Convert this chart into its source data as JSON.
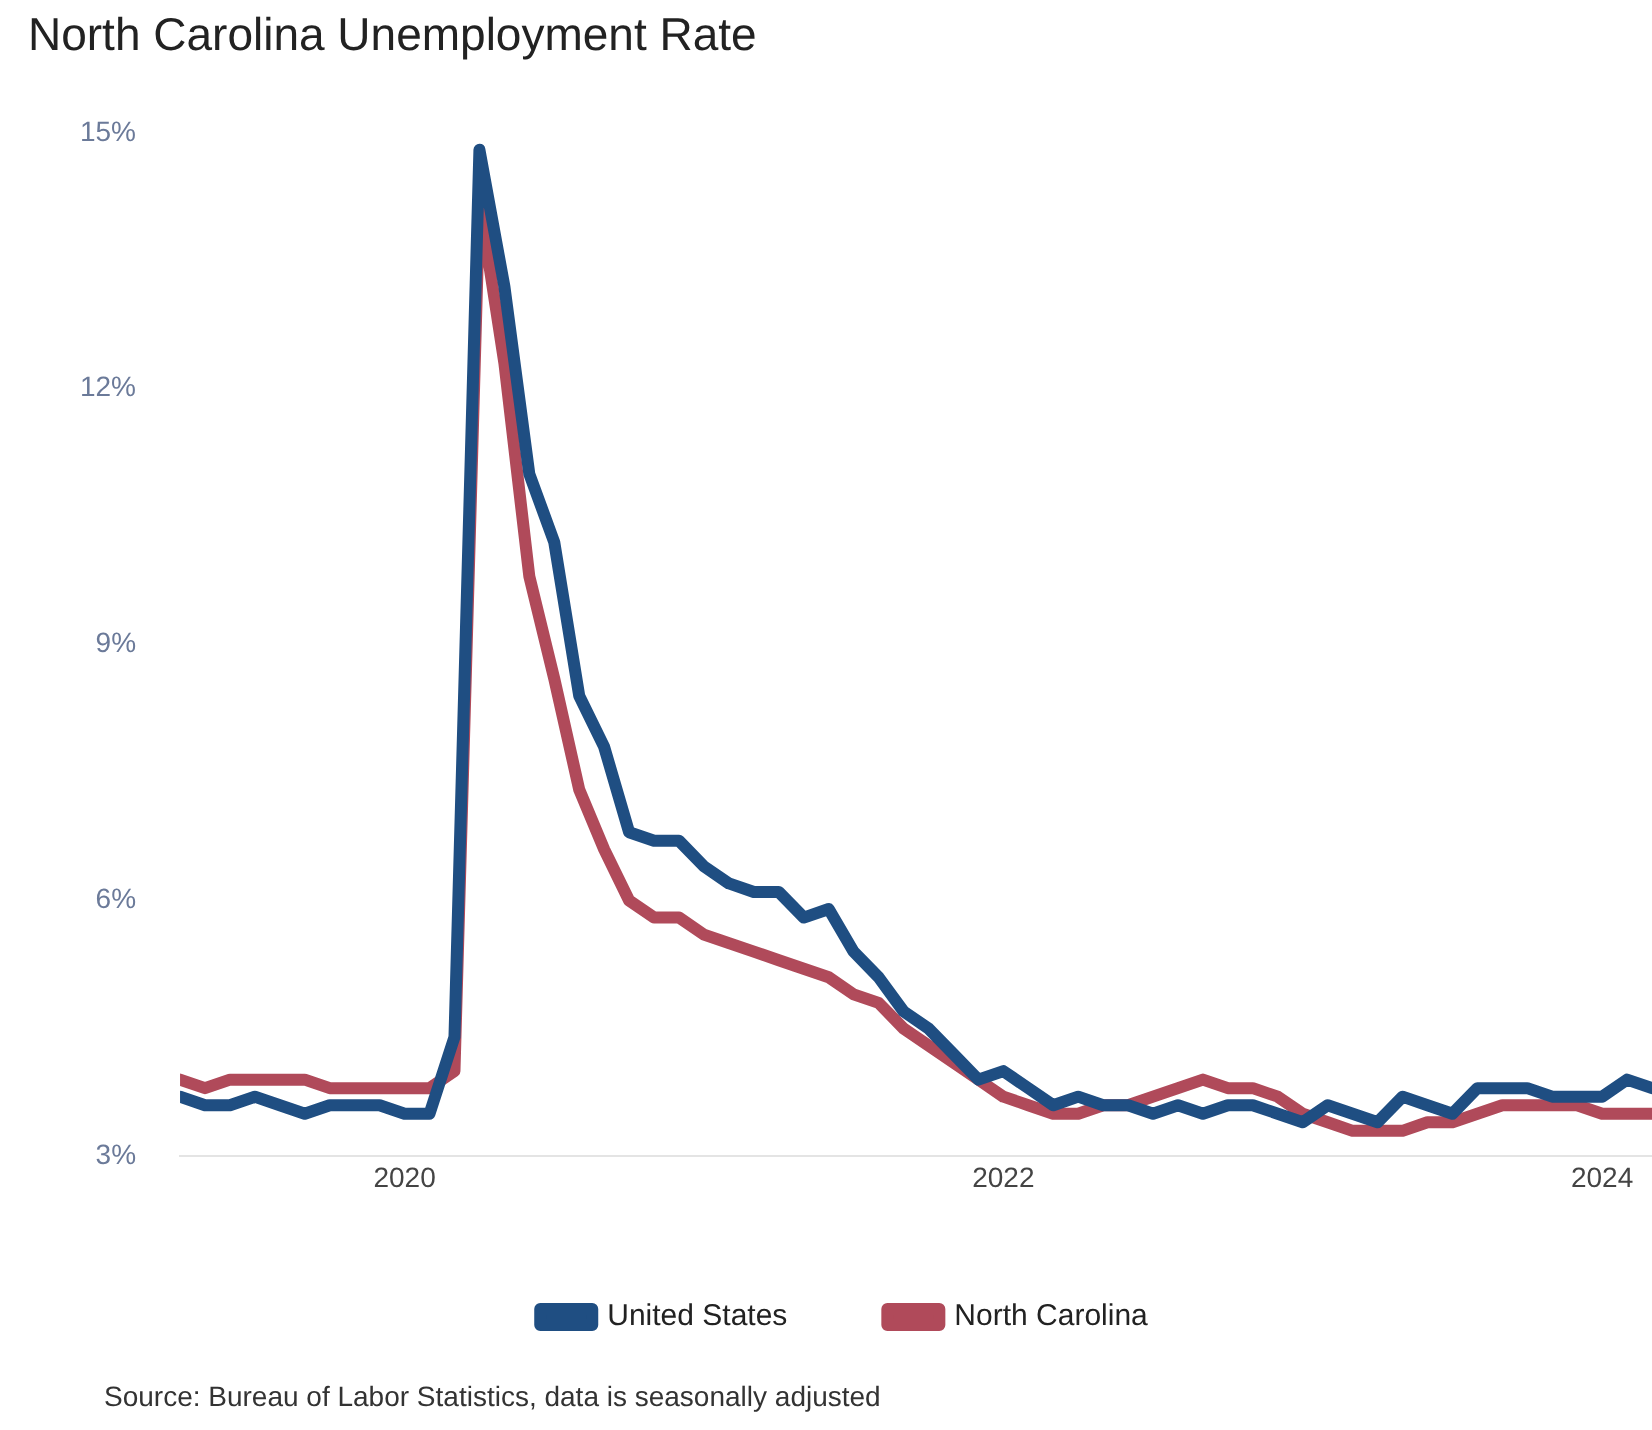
{
  "chart_data": {
    "type": "line",
    "title": "North Carolina Unemployment Rate",
    "x": [
      "2019-04",
      "2019-05",
      "2019-06",
      "2019-07",
      "2019-08",
      "2019-09",
      "2019-10",
      "2019-11",
      "2019-12",
      "2020-01",
      "2020-02",
      "2020-03",
      "2020-04",
      "2020-05",
      "2020-06",
      "2020-07",
      "2020-08",
      "2020-09",
      "2020-10",
      "2020-11",
      "2020-12",
      "2021-01",
      "2021-02",
      "2021-03",
      "2021-04",
      "2021-05",
      "2021-06",
      "2021-07",
      "2021-08",
      "2021-09",
      "2021-10",
      "2021-11",
      "2021-12",
      "2022-01",
      "2022-02",
      "2022-03",
      "2022-04",
      "2022-05",
      "2022-06",
      "2022-07",
      "2022-08",
      "2022-09",
      "2022-10",
      "2022-11",
      "2022-12",
      "2023-01",
      "2023-02",
      "2023-03",
      "2023-04",
      "2023-05",
      "2023-06",
      "2023-07",
      "2023-08",
      "2023-09",
      "2023-10",
      "2023-11",
      "2023-12",
      "2024-01",
      "2024-02",
      "2024-03"
    ],
    "series": [
      {
        "name": "United States",
        "color": "#1f4e82",
        "values": [
          3.7,
          3.6,
          3.6,
          3.7,
          3.6,
          3.5,
          3.6,
          3.6,
          3.6,
          3.5,
          3.5,
          4.4,
          14.8,
          13.2,
          11.0,
          10.2,
          8.4,
          7.8,
          6.8,
          6.7,
          6.7,
          6.4,
          6.2,
          6.1,
          6.1,
          5.8,
          5.9,
          5.4,
          5.1,
          4.7,
          4.5,
          4.2,
          3.9,
          4.0,
          3.8,
          3.6,
          3.7,
          3.6,
          3.6,
          3.5,
          3.6,
          3.5,
          3.6,
          3.6,
          3.5,
          3.4,
          3.6,
          3.5,
          3.4,
          3.7,
          3.6,
          3.5,
          3.8,
          3.8,
          3.8,
          3.7,
          3.7,
          3.7,
          3.9,
          3.8
        ]
      },
      {
        "name": "North Carolina",
        "color": "#b04a5a",
        "values": [
          3.9,
          3.8,
          3.9,
          3.9,
          3.9,
          3.9,
          3.8,
          3.8,
          3.8,
          3.8,
          3.8,
          4.0,
          14.2,
          12.3,
          9.8,
          8.6,
          7.3,
          6.6,
          6.0,
          5.8,
          5.8,
          5.6,
          5.5,
          5.4,
          5.3,
          5.2,
          5.1,
          4.9,
          4.8,
          4.5,
          4.3,
          4.1,
          3.9,
          3.7,
          3.6,
          3.5,
          3.5,
          3.6,
          3.6,
          3.7,
          3.8,
          3.9,
          3.8,
          3.8,
          3.7,
          3.5,
          3.4,
          3.3,
          3.3,
          3.3,
          3.4,
          3.4,
          3.5,
          3.6,
          3.6,
          3.6,
          3.6,
          3.5,
          3.5,
          3.5
        ]
      }
    ],
    "xlim": [
      "2019-04",
      "2024-03"
    ],
    "xticks": [
      "2020",
      "2022",
      "2024"
    ],
    "ylim": [
      3,
      15
    ],
    "yticks": [
      {
        "value": 3,
        "label": "3%"
      },
      {
        "value": 6,
        "label": "6%"
      },
      {
        "value": 9,
        "label": "9%"
      },
      {
        "value": 12,
        "label": "12%"
      },
      {
        "value": 15,
        "label": "15%"
      }
    ],
    "grid": false,
    "legend": "bottom",
    "marker": "none",
    "line_style": "solid",
    "annotations": [
      "Source: Bureau of Labor Statistics, data is seasonally adjusted"
    ]
  }
}
